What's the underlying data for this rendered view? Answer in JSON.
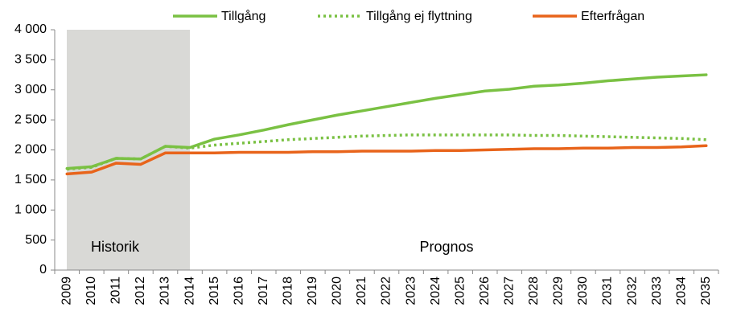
{
  "chart_data": {
    "type": "line",
    "categories": [
      "2009",
      "2010",
      "2011",
      "2012",
      "2013",
      "2014",
      "2015",
      "2016",
      "2017",
      "2018",
      "2019",
      "2020",
      "2021",
      "2022",
      "2023",
      "2024",
      "2025",
      "2026",
      "2027",
      "2028",
      "2029",
      "2030",
      "2031",
      "2032",
      "2033",
      "2034",
      "2035"
    ],
    "series": [
      {
        "name": "Tillgång",
        "color": "#7ac143",
        "dash": "solid",
        "values": [
          1690,
          1720,
          1860,
          1850,
          2060,
          2040,
          2180,
          2250,
          2330,
          2420,
          2500,
          2580,
          2650,
          2720,
          2790,
          2860,
          2920,
          2980,
          3010,
          3060,
          3080,
          3110,
          3150,
          3180,
          3210,
          3230,
          3250
        ]
      },
      {
        "name": "Tillgång ej flyttning",
        "color": "#7ac143",
        "dash": "dotted",
        "values": [
          1680,
          1710,
          1860,
          1850,
          2060,
          2030,
          2080,
          2110,
          2140,
          2170,
          2190,
          2210,
          2230,
          2240,
          2250,
          2250,
          2250,
          2250,
          2250,
          2240,
          2240,
          2230,
          2220,
          2210,
          2200,
          2190,
          2170
        ]
      },
      {
        "name": "Efterfrågan",
        "color": "#e8641b",
        "dash": "solid",
        "values": [
          1600,
          1630,
          1780,
          1760,
          1950,
          1950,
          1950,
          1960,
          1960,
          1960,
          1970,
          1970,
          1980,
          1980,
          1980,
          1990,
          1990,
          2000,
          2010,
          2020,
          2020,
          2030,
          2030,
          2040,
          2040,
          2050,
          2070
        ]
      }
    ],
    "ylim": [
      0,
      4000
    ],
    "yticks": [
      0,
      500,
      {
        "value": 1000,
        "label": "1 000"
      },
      {
        "value": 1500,
        "label": "1 500"
      },
      {
        "value": 2000,
        "label": "2 000"
      },
      {
        "value": 2500,
        "label": "2 500"
      },
      {
        "value": 3000,
        "label": "3 000"
      },
      {
        "value": 3500,
        "label": "3 500"
      },
      {
        "value": 4000,
        "label": "4 000"
      }
    ],
    "grid": false,
    "legend": "top",
    "annotations": [
      "Historik",
      "Prognos"
    ]
  }
}
